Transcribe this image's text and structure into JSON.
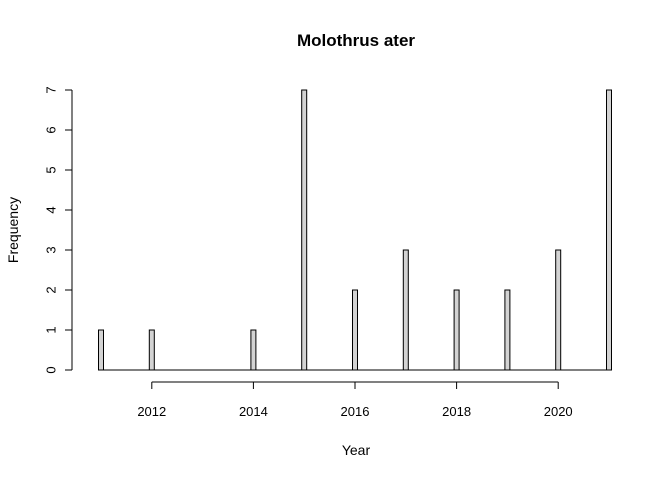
{
  "chart_data": {
    "type": "bar",
    "title": "Molothrus ater",
    "xlabel": "Year",
    "ylabel": "Frequency",
    "x": [
      2011,
      2012,
      2014,
      2015,
      2016,
      2017,
      2018,
      2019,
      2020,
      2021
    ],
    "values": [
      1,
      1,
      1,
      7,
      2,
      3,
      2,
      2,
      3,
      7
    ],
    "xlim": [
      2011,
      2021
    ],
    "ylim": [
      0,
      7
    ],
    "x_ticks": [
      2012,
      2014,
      2016,
      2018,
      2020
    ],
    "y_ticks": [
      0,
      1,
      2,
      3,
      4,
      5,
      6,
      7
    ],
    "grid": false,
    "bar_color": "#d3d3d3",
    "outline_color": "#000000"
  }
}
